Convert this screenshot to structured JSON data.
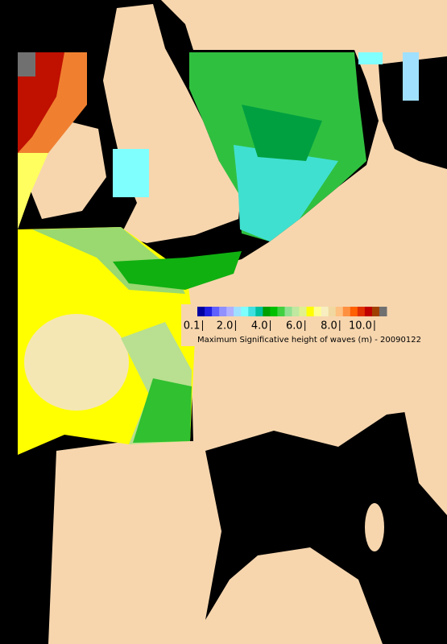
{
  "colorbar": {
    "colors": [
      "#0000a0",
      "#2020e0",
      "#6060ff",
      "#9090ff",
      "#b0b0ff",
      "#a0e0ff",
      "#80ffff",
      "#40e0e0",
      "#00c0a0",
      "#00a000",
      "#00c000",
      "#40d040",
      "#90e090",
      "#c0e8a0",
      "#e0f090",
      "#ffff00",
      "#ffff90",
      "#f8eec0",
      "#f0d8a0",
      "#ffc080",
      "#ff9040",
      "#ff6000",
      "#e03000",
      "#c00000",
      "#a04000",
      "#707070"
    ],
    "lim": [
      -0.2,
      10.7
    ],
    "ticks": [
      {
        "value": 0.1,
        "label": "0.1"
      },
      {
        "value": 2,
        "label": "2.0"
      },
      {
        "value": 4,
        "label": "4.0"
      },
      {
        "value": 6,
        "label": "6.0"
      },
      {
        "value": 8,
        "label": "8.0"
      },
      {
        "value": 10,
        "label": "10.0"
      }
    ],
    "caption": "Maximum Significative height of waves (m) - 20090122"
  }
}
